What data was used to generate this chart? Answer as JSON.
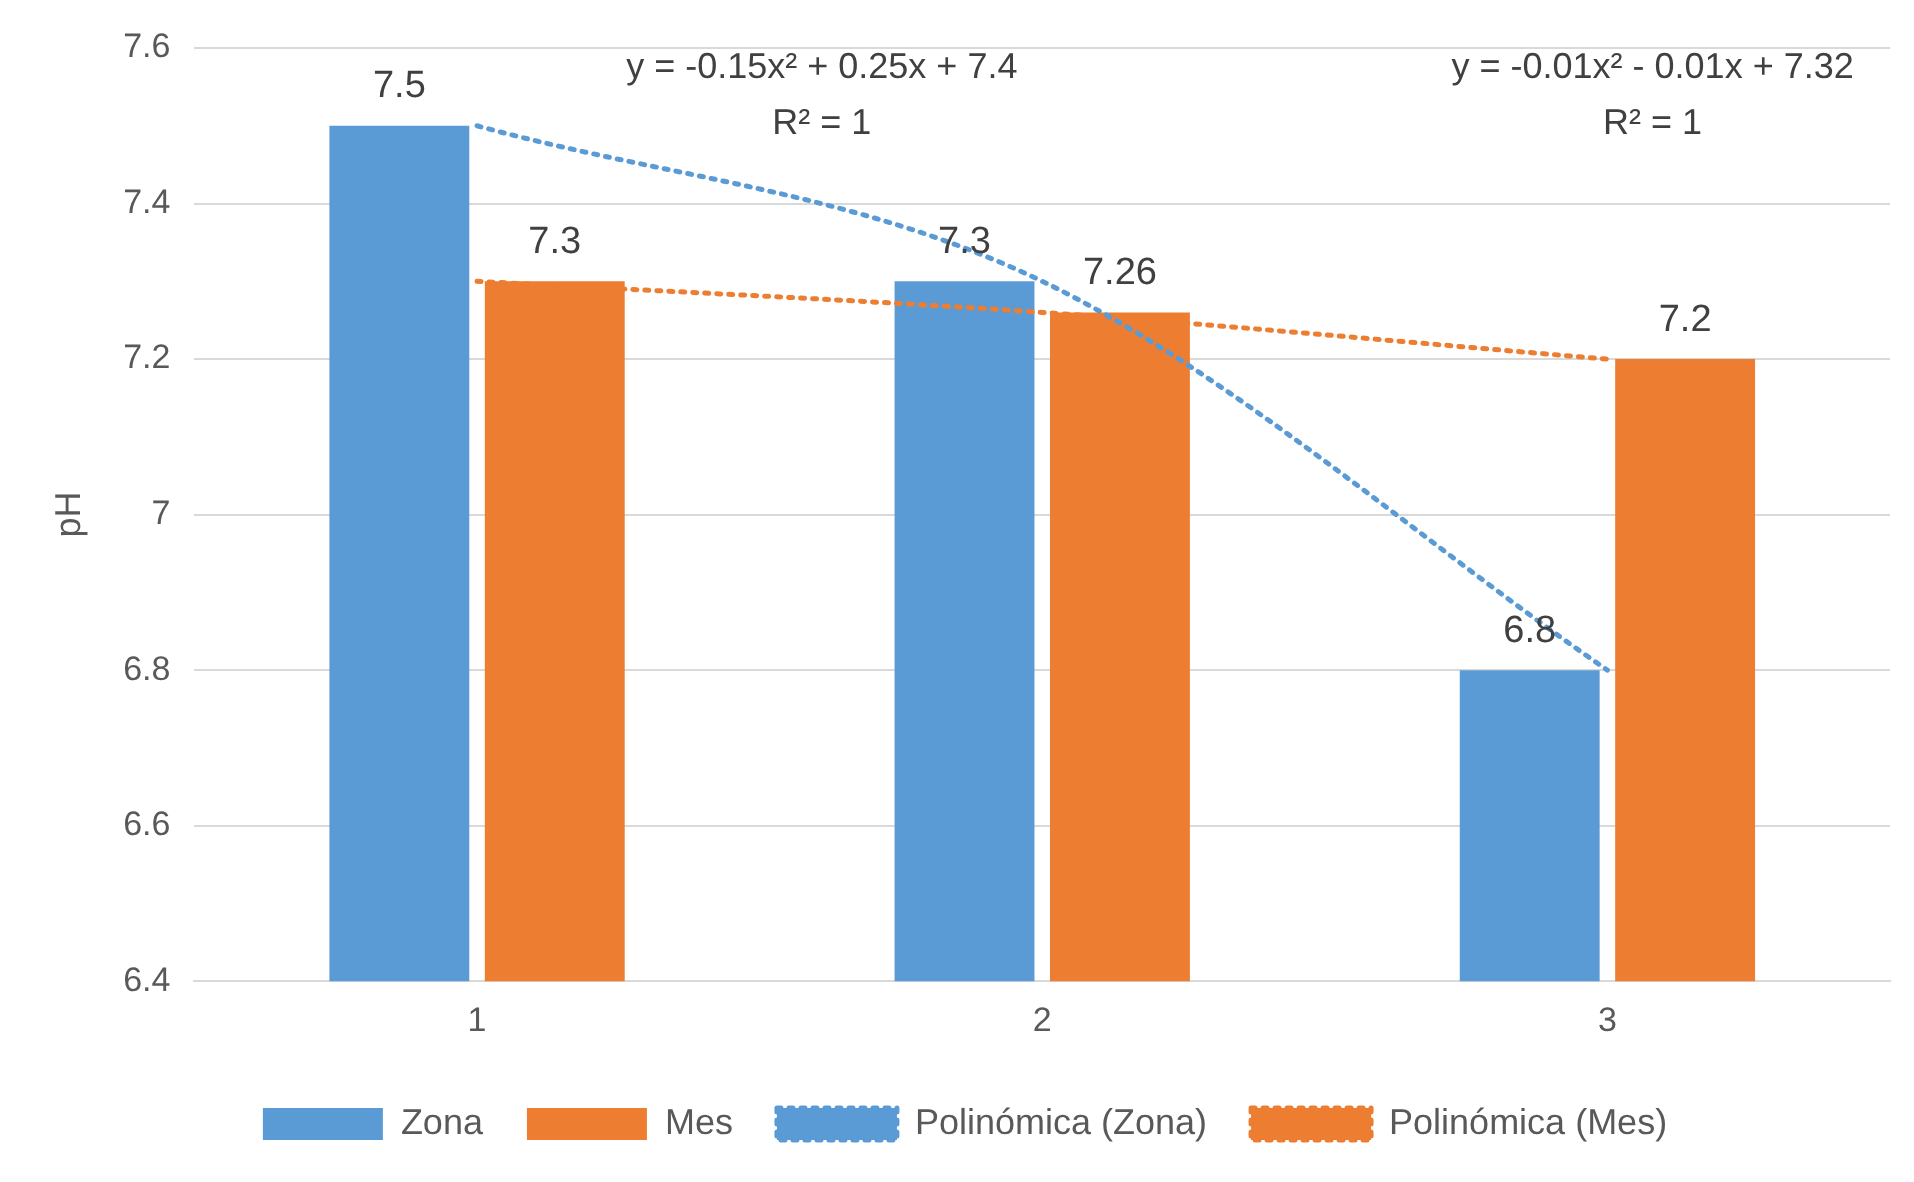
{
  "chart_data": {
    "type": "bar",
    "categories": [
      "1",
      "2",
      "3"
    ],
    "ylabel": "pH",
    "ylim": [
      6.4,
      7.6
    ],
    "yticks": [
      6.4,
      6.6,
      6.8,
      7,
      7.2,
      7.4,
      7.6
    ],
    "grid": "y",
    "legend": "bottom",
    "series": [
      {
        "name": "Zona",
        "color": "#5b9bd5",
        "values": [
          7.5,
          7.3,
          6.8
        ],
        "value_labels": [
          "7.5",
          "7.3",
          "6.8"
        ]
      },
      {
        "name": "Mes",
        "color": "#ed7d31",
        "values": [
          7.3,
          7.26,
          7.2
        ],
        "value_labels": [
          "7.3",
          "7.26",
          "7.2"
        ]
      },
      {
        "name": "Polinómica (Zona)",
        "type": "line",
        "color": "#5b9bd5",
        "values": [
          7.5,
          7.3,
          6.8
        ],
        "line_style": "dotted",
        "marker": "none"
      },
      {
        "name": "Polinómica (Mes)",
        "type": "line",
        "color": "#ed7d31",
        "values": [
          7.3,
          7.26,
          7.2
        ],
        "line_style": "dotted",
        "marker": "none"
      }
    ],
    "annotations": [
      "y = -0.15x² + 0.25x + 7.4",
      "R² = 1",
      "y = -0.01x² - 0.01x + 7.32",
      "R² = 1"
    ]
  }
}
